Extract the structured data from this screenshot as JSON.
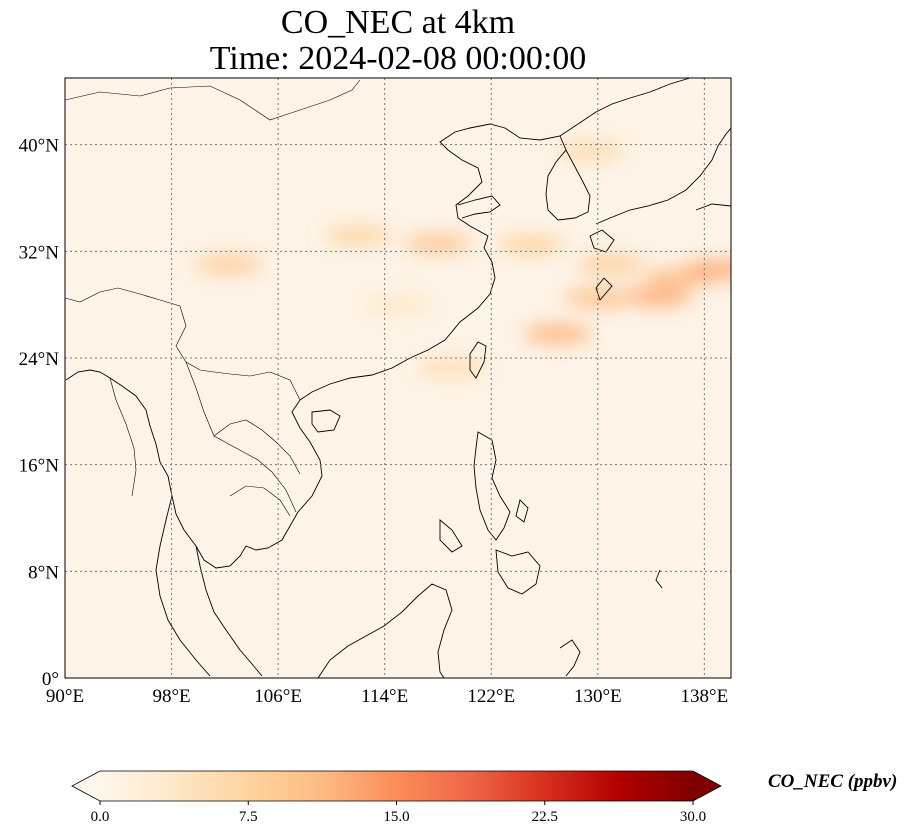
{
  "title": {
    "line1": "CO_NEC at 4km",
    "line2": "Time: 2024-02-08 00:00:00"
  },
  "map": {
    "extent": {
      "lon_min": 90,
      "lon_max": 140,
      "lat_min": 0,
      "lat_max": 45
    },
    "x_ticks": [
      {
        "value": 90,
        "label": "90°E"
      },
      {
        "value": 98,
        "label": "98°E"
      },
      {
        "value": 106,
        "label": "106°E"
      },
      {
        "value": 114,
        "label": "114°E"
      },
      {
        "value": 122,
        "label": "122°E"
      },
      {
        "value": 130,
        "label": "130°E"
      },
      {
        "value": 138,
        "label": "138°E"
      }
    ],
    "y_ticks": [
      {
        "value": 0,
        "label": "0°"
      },
      {
        "value": 8,
        "label": "8°N"
      },
      {
        "value": 16,
        "label": "16°N"
      },
      {
        "value": 24,
        "label": "24°N"
      },
      {
        "value": 32,
        "label": "32°N"
      },
      {
        "value": 40,
        "label": "40°N"
      }
    ],
    "gridlines": true,
    "background_color": "#fef4e7",
    "plumes": [
      {
        "lon": 102.3,
        "lat": 31.0,
        "value": 9.0
      },
      {
        "lon": 112.0,
        "lat": 33.2,
        "value": 7.5
      },
      {
        "lon": 118.0,
        "lat": 32.6,
        "value": 10.0
      },
      {
        "lon": 125.0,
        "lat": 32.5,
        "value": 8.0
      },
      {
        "lon": 131.0,
        "lat": 31.0,
        "value": 8.5
      },
      {
        "lon": 136.0,
        "lat": 30.0,
        "value": 11.0
      },
      {
        "lon": 139.0,
        "lat": 30.6,
        "value": 13.0
      },
      {
        "lon": 129.5,
        "lat": 39.5,
        "value": 6.5
      },
      {
        "lon": 127.0,
        "lat": 25.8,
        "value": 12.0
      },
      {
        "lon": 130.0,
        "lat": 28.5,
        "value": 10.5
      },
      {
        "lon": 134.5,
        "lat": 28.6,
        "value": 12.5
      },
      {
        "lon": 119.0,
        "lat": 23.3,
        "value": 6.0
      },
      {
        "lon": 115.0,
        "lat": 28.0,
        "value": 4.0
      }
    ]
  },
  "colorbar": {
    "min": 0,
    "max": 30,
    "cmap": "OrRd",
    "ticks": [
      "0.0",
      "7.5",
      "15.0",
      "22.5",
      "30.0"
    ],
    "label": "CO_NEC (ppbv)",
    "colors": [
      "#fff7ec",
      "#fee8c8",
      "#fdd49e",
      "#fdbb84",
      "#fc8d59",
      "#ef6548",
      "#d7301f",
      "#b30000",
      "#7f0000"
    ]
  }
}
